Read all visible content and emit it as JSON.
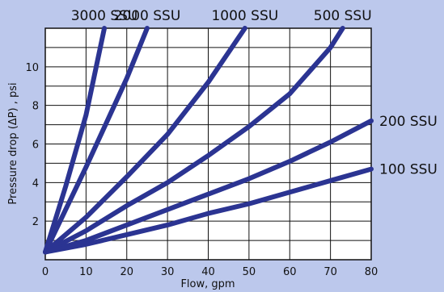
{
  "chart_data": {
    "type": "line",
    "xlabel": "Flow, gpm",
    "ylabel": "Pressure drop (ΔP) , psi",
    "xlim": [
      0,
      80
    ],
    "ylim": [
      0,
      12
    ],
    "x_ticks": [
      0,
      10,
      20,
      30,
      40,
      50,
      60,
      70,
      80
    ],
    "y_ticks": [
      2,
      4,
      6,
      8,
      10
    ],
    "grid": true,
    "line_color": "#2b3492",
    "series": [
      {
        "name": "3000 SSU",
        "points": [
          [
            0,
            0.4
          ],
          [
            5,
            3.8
          ],
          [
            10,
            7.5
          ],
          [
            14.5,
            12
          ]
        ]
      },
      {
        "name": "2000 SSU",
        "points": [
          [
            0,
            0.4
          ],
          [
            10,
            4.8
          ],
          [
            20,
            9.4
          ],
          [
            25,
            12
          ]
        ]
      },
      {
        "name": "1000 SSU",
        "points": [
          [
            0,
            0.4
          ],
          [
            10,
            2.2
          ],
          [
            20,
            4.3
          ],
          [
            30,
            6.5
          ],
          [
            40,
            9.2
          ],
          [
            49,
            12
          ]
        ]
      },
      {
        "name": "500 SSU",
        "points": [
          [
            0,
            0.4
          ],
          [
            10,
            1.5
          ],
          [
            20,
            2.8
          ],
          [
            30,
            4.0
          ],
          [
            40,
            5.4
          ],
          [
            50,
            6.9
          ],
          [
            60,
            8.6
          ],
          [
            70,
            11
          ],
          [
            73,
            12
          ]
        ]
      },
      {
        "name": "200 SSU",
        "points": [
          [
            0,
            0.4
          ],
          [
            10,
            1.0
          ],
          [
            20,
            1.8
          ],
          [
            30,
            2.6
          ],
          [
            40,
            3.4
          ],
          [
            50,
            4.2
          ],
          [
            60,
            5.1
          ],
          [
            70,
            6.1
          ],
          [
            80,
            7.2
          ]
        ]
      },
      {
        "name": "100 SSU",
        "points": [
          [
            0,
            0.4
          ],
          [
            10,
            0.8
          ],
          [
            20,
            1.3
          ],
          [
            30,
            1.8
          ],
          [
            40,
            2.4
          ],
          [
            50,
            2.9
          ],
          [
            60,
            3.5
          ],
          [
            70,
            4.1
          ],
          [
            80,
            4.7
          ]
        ]
      }
    ]
  }
}
